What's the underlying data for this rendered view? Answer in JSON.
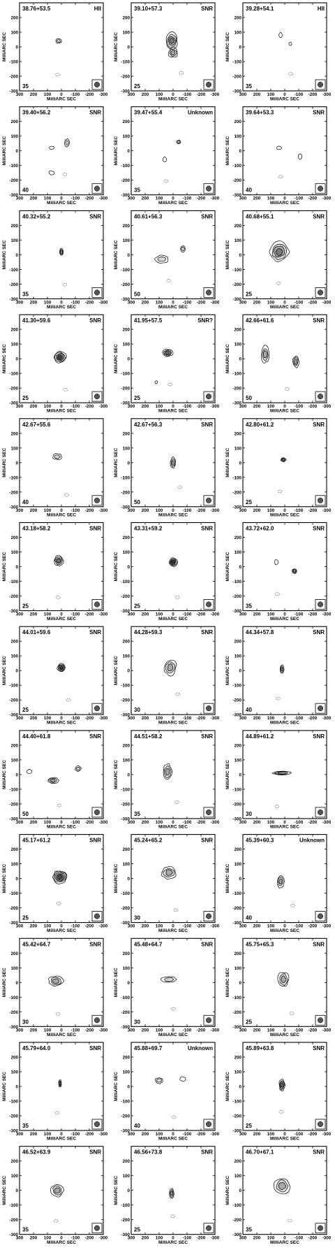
{
  "axes": {
    "xlabel": "MilliARC SEC",
    "ylabel": "MilliARC SEC",
    "x_ticks": [
      "300",
      "200",
      "100",
      "0",
      "-100",
      "-200",
      "-300"
    ],
    "y_ticks": [
      "200",
      "100",
      "0",
      "-100",
      "-200",
      "-300"
    ],
    "xlim": [
      300,
      -300
    ],
    "ylim": [
      -300,
      300
    ]
  },
  "panels": [
    {
      "name": "38.76+53.5",
      "cls": "HII",
      "contour": "35"
    },
    {
      "name": "39.10+57.3",
      "cls": "SNR",
      "contour": "25"
    },
    {
      "name": "39.28+54.1",
      "cls": "HII",
      "contour": "35"
    },
    {
      "name": "39.40+56.2",
      "cls": "SNR",
      "contour": "40"
    },
    {
      "name": "39.47+55.4",
      "cls": "Unknown",
      "contour": "35"
    },
    {
      "name": "39.64+53.3",
      "cls": "SNR",
      "contour": "40"
    },
    {
      "name": "40.32+55.2",
      "cls": "SNR",
      "contour": "35"
    },
    {
      "name": "40.61+56.3",
      "cls": "SNR",
      "contour": "50"
    },
    {
      "name": "40.68+55.1",
      "cls": "SNR",
      "contour": "25"
    },
    {
      "name": "41.30+59.6",
      "cls": "SNR",
      "contour": "25"
    },
    {
      "name": "41.95+57.5",
      "cls": "SNR?",
      "contour": "25"
    },
    {
      "name": "42.66+61.6",
      "cls": "SNR",
      "contour": "50"
    },
    {
      "name": "42.67+55.6",
      "cls": "",
      "contour": "40"
    },
    {
      "name": "42.67+56.3",
      "cls": "SNR",
      "contour": "50"
    },
    {
      "name": "42.80+61.2",
      "cls": "SNR",
      "contour": "25"
    },
    {
      "name": "43.18+58.2",
      "cls": "SNR",
      "contour": "25"
    },
    {
      "name": "43.31+59.2",
      "cls": "SNR",
      "contour": "25"
    },
    {
      "name": "43.72+62.0",
      "cls": "SNR",
      "contour": "35"
    },
    {
      "name": "44.01+59.6",
      "cls": "SNR",
      "contour": "25"
    },
    {
      "name": "44.28+59.3",
      "cls": "SNR",
      "contour": "30"
    },
    {
      "name": "44.34+57.8",
      "cls": "SNR",
      "contour": "40"
    },
    {
      "name": "44.40+61.8",
      "cls": "SNR",
      "contour": "50"
    },
    {
      "name": "44.51+58.2",
      "cls": "SNR",
      "contour": "35"
    },
    {
      "name": "44.89+61.2",
      "cls": "SNR",
      "contour": "30"
    },
    {
      "name": "45.17+61.2",
      "cls": "SNR",
      "contour": "25"
    },
    {
      "name": "45.24+65.2",
      "cls": "SNR",
      "contour": "30"
    },
    {
      "name": "45.39+60.3",
      "cls": "Unknown",
      "contour": "40"
    },
    {
      "name": "45.42+64.7",
      "cls": "SNR",
      "contour": "30"
    },
    {
      "name": "45.48+64.7",
      "cls": "SNR",
      "contour": "30"
    },
    {
      "name": "45.75+65.3",
      "cls": "SNR",
      "contour": "25"
    },
    {
      "name": "45.79+64.0",
      "cls": "SNR",
      "contour": "35"
    },
    {
      "name": "45.88+69.7",
      "cls": "Unknown",
      "contour": "40"
    },
    {
      "name": "45.89+63.8",
      "cls": "SNR",
      "contour": "25"
    },
    {
      "name": "46.52+63.9",
      "cls": "SNR",
      "contour": "35"
    },
    {
      "name": "46.56+73.8",
      "cls": "SNR",
      "contour": "25"
    },
    {
      "name": "46.70+67.1",
      "cls": "SNR",
      "contour": "35"
    }
  ]
}
